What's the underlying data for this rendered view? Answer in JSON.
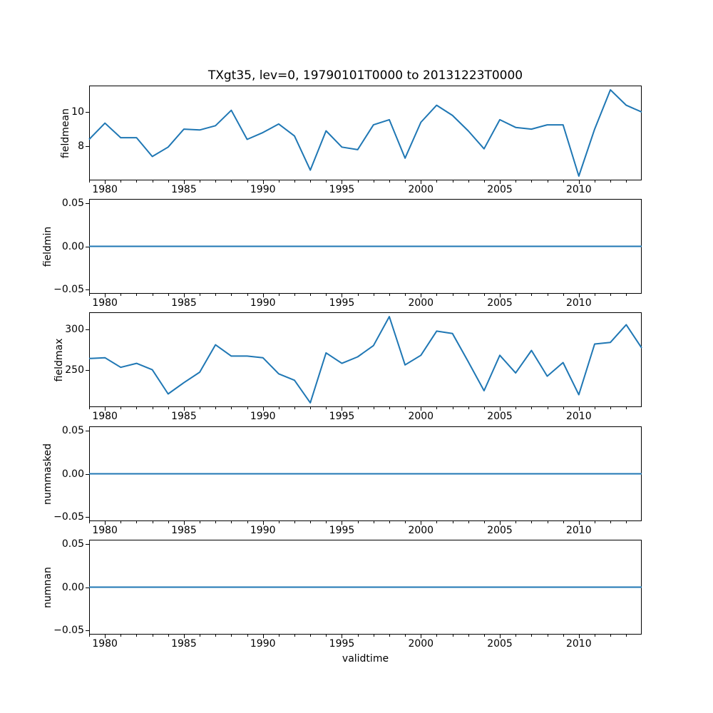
{
  "figure": {
    "line_color": "#1f77b4",
    "axis_color": "#000000",
    "background": "#ffffff"
  },
  "chart_data": {
    "type": "line",
    "title": "TXgt35, lev=0, 19790101T0000 to 20131223T0000",
    "xlabel": "validtime",
    "legend": "none",
    "grid": false,
    "xlim": [
      1979.0,
      2013.98
    ],
    "x": [
      1979,
      1980,
      1981,
      1982,
      1983,
      1984,
      1985,
      1986,
      1987,
      1988,
      1989,
      1990,
      1991,
      1992,
      1993,
      1994,
      1995,
      1996,
      1997,
      1998,
      1999,
      2000,
      2001,
      2002,
      2003,
      2004,
      2005,
      2006,
      2007,
      2008,
      2009,
      2010,
      2011,
      2012,
      2013,
      2013.98
    ],
    "xticks_major": [
      {
        "v": 1980,
        "label": "1980"
      },
      {
        "v": 1985,
        "label": "1985"
      },
      {
        "v": 1990,
        "label": "1990"
      },
      {
        "v": 1995,
        "label": "1995"
      },
      {
        "v": 2000,
        "label": "2000"
      },
      {
        "v": 2005,
        "label": "2005"
      },
      {
        "v": 2010,
        "label": "2010"
      }
    ],
    "xticks_minor_every": 1,
    "subplots": [
      {
        "name": "fieldmean",
        "ylabel": "fieldmean",
        "ylim": [
          6.0,
          11.55
        ],
        "yticks": [
          {
            "v": 8,
            "label": "8"
          },
          {
            "v": 10,
            "label": "10"
          }
        ],
        "values": [
          8.4,
          9.35,
          8.5,
          8.5,
          7.4,
          7.95,
          9.0,
          8.95,
          9.2,
          10.1,
          8.4,
          8.8,
          9.3,
          8.6,
          6.6,
          8.9,
          7.95,
          7.8,
          9.25,
          9.55,
          7.3,
          9.4,
          10.4,
          9.8,
          8.9,
          7.85,
          9.55,
          9.1,
          9.0,
          9.25,
          9.25,
          6.25,
          9.0,
          11.3,
          10.4,
          10.0
        ]
      },
      {
        "name": "fieldmin",
        "ylabel": "fieldmin",
        "ylim": [
          -0.055,
          0.055
        ],
        "yticks": [
          {
            "v": -0.05,
            "label": "−0.05"
          },
          {
            "v": 0,
            "label": "0.00"
          },
          {
            "v": 0.05,
            "label": "0.05"
          }
        ],
        "values": [
          0,
          0,
          0,
          0,
          0,
          0,
          0,
          0,
          0,
          0,
          0,
          0,
          0,
          0,
          0,
          0,
          0,
          0,
          0,
          0,
          0,
          0,
          0,
          0,
          0,
          0,
          0,
          0,
          0,
          0,
          0,
          0,
          0,
          0,
          0,
          0
        ]
      },
      {
        "name": "fieldmax",
        "ylabel": "fieldmax",
        "ylim": [
          203.6,
          321.4
        ],
        "yticks": [
          {
            "v": 250,
            "label": "250"
          },
          {
            "v": 300,
            "label": "300"
          }
        ],
        "values": [
          264,
          265,
          253,
          258,
          250,
          220,
          234,
          247,
          281,
          267,
          267,
          265,
          245,
          237,
          209,
          271,
          258,
          266,
          280,
          316,
          256,
          268,
          298,
          295,
          260,
          224,
          268,
          246,
          274,
          242,
          259,
          219,
          282,
          284,
          306,
          277
        ]
      },
      {
        "name": "nummasked",
        "ylabel": "nummasked",
        "ylim": [
          -0.055,
          0.055
        ],
        "yticks": [
          {
            "v": -0.05,
            "label": "−0.05"
          },
          {
            "v": 0,
            "label": "0.00"
          },
          {
            "v": 0.05,
            "label": "0.05"
          }
        ],
        "values": [
          0,
          0,
          0,
          0,
          0,
          0,
          0,
          0,
          0,
          0,
          0,
          0,
          0,
          0,
          0,
          0,
          0,
          0,
          0,
          0,
          0,
          0,
          0,
          0,
          0,
          0,
          0,
          0,
          0,
          0,
          0,
          0,
          0,
          0,
          0,
          0
        ]
      },
      {
        "name": "numnan",
        "ylabel": "numnan",
        "ylim": [
          -0.055,
          0.055
        ],
        "yticks": [
          {
            "v": -0.05,
            "label": "−0.05"
          },
          {
            "v": 0,
            "label": "0.00"
          },
          {
            "v": 0.05,
            "label": "0.05"
          }
        ],
        "values": [
          0,
          0,
          0,
          0,
          0,
          0,
          0,
          0,
          0,
          0,
          0,
          0,
          0,
          0,
          0,
          0,
          0,
          0,
          0,
          0,
          0,
          0,
          0,
          0,
          0,
          0,
          0,
          0,
          0,
          0,
          0,
          0,
          0,
          0,
          0,
          0
        ]
      }
    ]
  }
}
